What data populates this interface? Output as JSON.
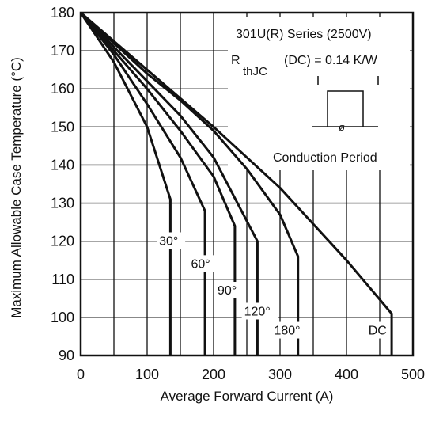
{
  "chart_data": {
    "type": "line",
    "xlabel": "Average Forward Current (A)",
    "ylabel": "Maximum Allowable Case Temperature (°C)",
    "xlim": [
      0,
      500
    ],
    "ylim": [
      90,
      180
    ],
    "xticks": [
      "0",
      "100",
      "200",
      "300",
      "400",
      "500"
    ],
    "yticks": [
      "90",
      "100",
      "110",
      "120",
      "130",
      "140",
      "150",
      "160",
      "170",
      "180"
    ],
    "grid": true,
    "annotations": {
      "series_title": "301U(R) Series (2500V)",
      "rth_main": "R",
      "rth_sub": "thJC",
      "rth_value": "(DC) = 0.14 K/W",
      "phi": "ø",
      "conduction_label": "Conduction Period"
    },
    "series": [
      {
        "name": "30°",
        "x": [
          0,
          50,
          100,
          135,
          135
        ],
        "y": [
          180,
          167,
          150,
          131,
          90
        ]
      },
      {
        "name": "60°",
        "x": [
          0,
          50,
          100,
          150,
          187,
          187
        ],
        "y": [
          180,
          169,
          156,
          142,
          128,
          90
        ]
      },
      {
        "name": "90°",
        "x": [
          0,
          50,
          100,
          150,
          200,
          232,
          232
        ],
        "y": [
          180,
          170,
          160,
          149,
          137,
          124,
          90
        ]
      },
      {
        "name": "120°",
        "x": [
          0,
          50,
          100,
          150,
          200,
          266,
          266
        ],
        "y": [
          180,
          171,
          162,
          153,
          142,
          120,
          90
        ]
      },
      {
        "name": "180°",
        "x": [
          0,
          50,
          100,
          150,
          200,
          250,
          300,
          327,
          327
        ],
        "y": [
          180,
          172,
          164,
          157,
          149,
          139,
          127,
          116,
          90
        ]
      },
      {
        "name": "DC",
        "x": [
          0,
          100,
          200,
          300,
          400,
          468,
          468
        ],
        "y": [
          180,
          165,
          150,
          134,
          115,
          101,
          90
        ]
      }
    ],
    "series_labels": [
      {
        "text": "30°",
        "x": 118,
        "y": 119
      },
      {
        "text": "60°",
        "x": 166,
        "y": 113
      },
      {
        "text": "90°",
        "x": 206,
        "y": 106
      },
      {
        "text": "120°",
        "x": 246,
        "y": 100.5
      },
      {
        "text": "180°",
        "x": 291,
        "y": 95.5
      },
      {
        "text": "DC",
        "x": 433,
        "y": 95.5
      }
    ]
  }
}
